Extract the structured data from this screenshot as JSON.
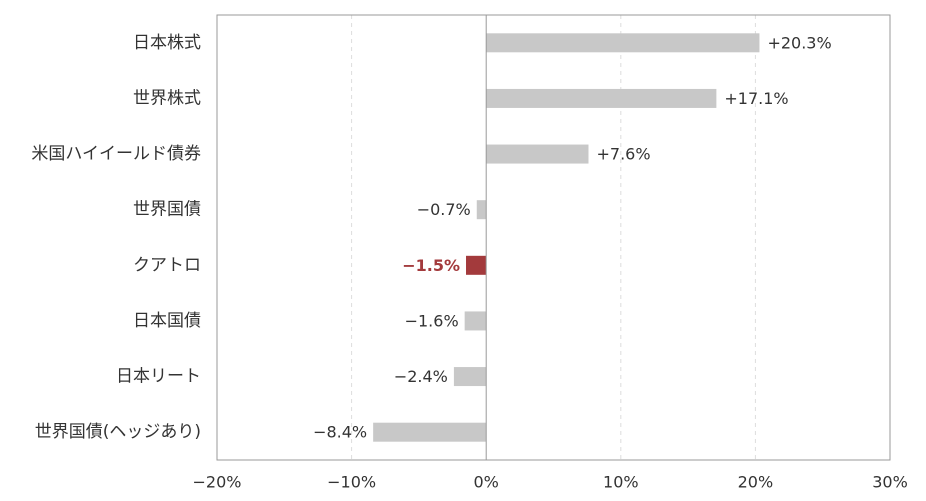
{
  "chart_data": {
    "type": "bar",
    "orientation": "horizontal",
    "categories": [
      "日本株式",
      "世界株式",
      "米国ハイイールド債券",
      "世界国債",
      "クアトロ",
      "日本国債",
      "日本リート",
      "世界国債(ヘッジあり)"
    ],
    "values": [
      20.3,
      17.1,
      7.6,
      -0.7,
      -1.5,
      -1.6,
      -2.4,
      -8.4
    ],
    "value_labels": [
      "+20.3%",
      "+17.1%",
      "+7.6%",
      "−0.7%",
      "−1.5%",
      "−1.6%",
      "−2.4%",
      "−8.4%"
    ],
    "highlight_index": 4,
    "xlim": [
      -20,
      30
    ],
    "xticks": [
      -20,
      -10,
      0,
      10,
      20,
      30
    ],
    "xtick_labels": [
      "−20%",
      "−10%",
      "0%",
      "10%",
      "20%",
      "30%"
    ],
    "grid": "vertical dashed",
    "title": "",
    "xlabel": "",
    "ylabel": ""
  },
  "colors": {
    "bar": "#c8c8c8",
    "highlight_bar": "#a33a3c",
    "highlight_text": "#a33a3c",
    "axis": "#999999",
    "grid": "#dddddd",
    "text": "#333333"
  }
}
